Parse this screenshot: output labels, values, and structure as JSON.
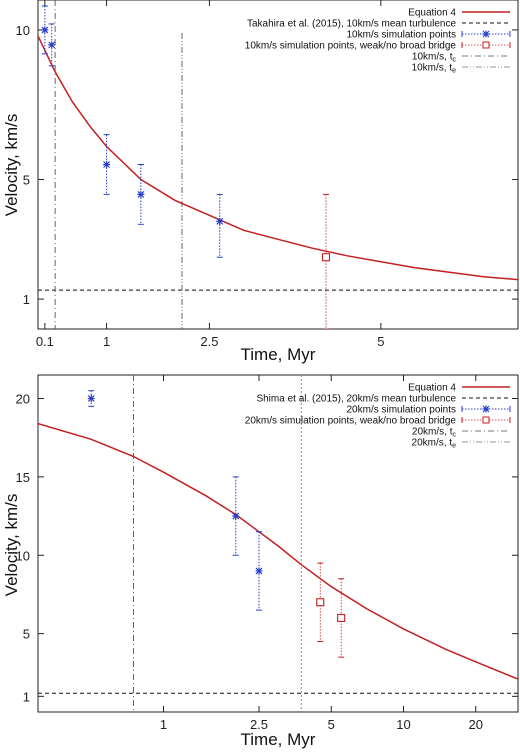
{
  "chart_data": [
    {
      "type": "line",
      "xlabel": "Time, Myr",
      "ylabel": "Velocity, km/s",
      "x_ticks": [
        "0.1",
        "1",
        "2.5",
        "5"
      ],
      "y_ticks": [
        "1",
        "5",
        "10"
      ],
      "xlim": [
        0,
        7
      ],
      "ylim": [
        0,
        11
      ],
      "grid": false,
      "legend_position": "top-right",
      "legend": [
        {
          "label": "Equation 4",
          "sub": "",
          "style": "red-solid"
        },
        {
          "label": "Takahira et al. (2015), 10km/s mean turbulence",
          "sub": "",
          "style": "black-dashed"
        },
        {
          "label": "10km/s simulation points",
          "sub": "",
          "style": "blue-star"
        },
        {
          "label": "10km/s simulation points, weak/no broad bridge",
          "sub": "",
          "style": "red-square"
        },
        {
          "label": "10km/s, t",
          "sub": "c",
          "style": "grey-dashdot"
        },
        {
          "label": "10km/s, t",
          "sub": "e",
          "style": "grey-dashdot2"
        }
      ],
      "equation_curve": {
        "x": [
          0.0,
          0.25,
          0.5,
          0.75,
          1.0,
          1.5,
          2.0,
          2.5,
          3.0,
          3.5,
          4.0,
          4.5,
          5.0,
          5.5,
          6.0,
          6.5,
          7.0
        ],
        "y": [
          9.8,
          8.6,
          7.6,
          6.8,
          6.1,
          5.0,
          4.3,
          3.8,
          3.3,
          3.0,
          2.7,
          2.45,
          2.25,
          2.05,
          1.9,
          1.75,
          1.65
        ]
      },
      "mean_turbulence": 1.3,
      "t_c": 0.25,
      "t_e": 2.1,
      "te_line_top": 9.9,
      "simulation_points": [
        {
          "x": 0.1,
          "y": 10.0,
          "ylo": 9.2,
          "yhi": 10.8
        },
        {
          "x": 0.2,
          "y": 9.5,
          "ylo": 8.8,
          "yhi": 10.2
        },
        {
          "x": 1.0,
          "y": 5.5,
          "ylo": 4.5,
          "yhi": 6.5
        },
        {
          "x": 1.5,
          "y": 4.5,
          "ylo": 3.5,
          "yhi": 5.5
        },
        {
          "x": 2.65,
          "y": 3.6,
          "ylo": 2.4,
          "yhi": 4.5
        }
      ],
      "weak_bridge_points": [
        {
          "x": 4.2,
          "y": 2.4,
          "ylo": 0.0,
          "yhi": 4.5
        }
      ]
    },
    {
      "type": "line",
      "xlabel": "Time, Myr",
      "ylabel": "Velocity, km/s",
      "x_ticks": [
        "1",
        "2.5",
        "5",
        "10",
        "20"
      ],
      "y_ticks": [
        "1",
        "5",
        "10",
        "15",
        "20"
      ],
      "xlim": [
        0.3,
        30
      ],
      "x_scale": "log",
      "ylim": [
        0,
        21.5
      ],
      "grid": false,
      "legend_position": "top-right",
      "legend": [
        {
          "label": "Equation 4",
          "sub": "",
          "style": "red-solid"
        },
        {
          "label": "Shima et al. (2015), 20km/s mean turbulence",
          "sub": "",
          "style": "black-dashed"
        },
        {
          "label": "20km/s simulation points",
          "sub": "",
          "style": "blue-star"
        },
        {
          "label": "20km/s simulation points, weak/no broad bridge",
          "sub": "",
          "style": "red-square"
        },
        {
          "label": "20km/s, t",
          "sub": "c",
          "style": "grey-dashdot"
        },
        {
          "label": "20km/s, t",
          "sub": "e",
          "style": "grey-dashdot2"
        }
      ],
      "equation_curve": {
        "x": [
          0.3,
          0.5,
          0.75,
          1.0,
          1.5,
          2.0,
          2.5,
          3.0,
          3.75,
          5.0,
          7.0,
          10.0,
          15.0,
          20.0,
          30.0
        ],
        "y": [
          18.4,
          17.4,
          16.3,
          15.3,
          13.8,
          12.6,
          11.5,
          10.6,
          9.4,
          8.0,
          6.6,
          5.3,
          4.0,
          3.2,
          2.1
        ]
      },
      "mean_turbulence": 1.2,
      "t_c": 0.75,
      "t_e": 3.75,
      "simulation_points": [
        {
          "x": 0.5,
          "y": 20.0,
          "ylo": 19.5,
          "yhi": 20.5
        },
        {
          "x": 2.0,
          "y": 12.5,
          "ylo": 10.0,
          "yhi": 15.0
        },
        {
          "x": 2.5,
          "y": 9.0,
          "ylo": 6.5,
          "yhi": 11.5
        }
      ],
      "weak_bridge_points": [
        {
          "x": 4.5,
          "y": 7.0,
          "ylo": 4.5,
          "yhi": 9.5
        },
        {
          "x": 5.5,
          "y": 6.0,
          "ylo": 3.5,
          "yhi": 8.5
        }
      ]
    }
  ]
}
